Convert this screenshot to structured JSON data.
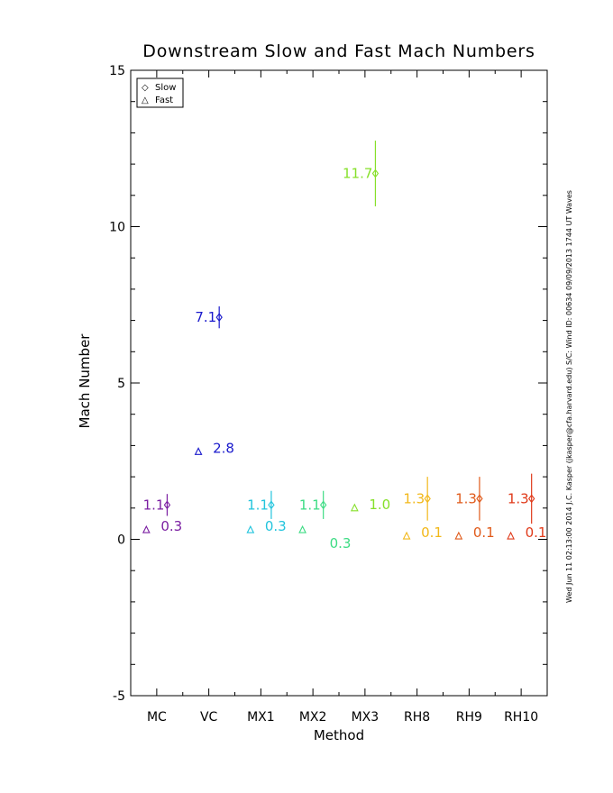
{
  "chart_data": {
    "type": "scatter",
    "title": "Downstream Slow and Fast Mach Numbers",
    "xlabel": "Method",
    "ylabel": "Mach Number",
    "categories": [
      "MC",
      "VC",
      "MX1",
      "MX2",
      "MX3",
      "RH8",
      "RH9",
      "RH10"
    ],
    "xlim": [
      0.5,
      8.5
    ],
    "ylim": [
      -5,
      15
    ],
    "yticks": [
      "-5",
      "0",
      "5",
      "10",
      "15"
    ],
    "legend": {
      "position": "top-left",
      "entries": [
        {
          "symbol": "◇",
          "label": "Slow"
        },
        {
          "symbol": "△",
          "label": "Fast"
        }
      ]
    },
    "series": [
      {
        "name": "Slow",
        "marker": "diamond",
        "points": [
          {
            "category": "MC",
            "y": 1.1,
            "err": 0.35,
            "label": "1.1",
            "color": "#7b1fa2"
          },
          {
            "category": "VC",
            "y": 7.1,
            "err": 0.35,
            "label": "7.1",
            "color": "#1a1acc"
          },
          {
            "category": "MX1",
            "y": 1.1,
            "err": 0.45,
            "label": "1.1",
            "color": "#22c4dd"
          },
          {
            "category": "MX2",
            "y": 1.1,
            "err": 0.45,
            "label": "1.1",
            "color": "#3ddc84"
          },
          {
            "category": "MX3",
            "y": 11.7,
            "err": 1.05,
            "label": "11.7",
            "color": "#86e02a"
          },
          {
            "category": "RH8",
            "y": 1.3,
            "err": 0.7,
            "label": "1.3",
            "color": "#f2b81a"
          },
          {
            "category": "RH9",
            "y": 1.3,
            "err": 0.7,
            "label": "1.3",
            "color": "#e05a1a"
          },
          {
            "category": "RH10",
            "y": 1.3,
            "err": 0.8,
            "label": "1.3",
            "color": "#e03a1a"
          }
        ]
      },
      {
        "name": "Fast",
        "marker": "triangle",
        "points": [
          {
            "category": "MC",
            "y": 0.3,
            "label": "0.3",
            "color": "#7b1fa2"
          },
          {
            "category": "VC",
            "y": 2.8,
            "label": "2.8",
            "color": "#1a1acc"
          },
          {
            "category": "MX1",
            "y": 0.3,
            "label": "0.3",
            "color": "#22c4dd"
          },
          {
            "category": "MX2",
            "y": 0.3,
            "label": "0.3",
            "color": "#3ddc84"
          },
          {
            "category": "MX3",
            "y": 1.0,
            "label": "1.0",
            "color": "#86e02a"
          },
          {
            "category": "RH8",
            "y": 0.1,
            "label": "0.1",
            "color": "#f2b81a"
          },
          {
            "category": "RH9",
            "y": 0.1,
            "label": "0.1",
            "color": "#e05a1a"
          },
          {
            "category": "RH10",
            "y": 0.1,
            "label": "0.1",
            "color": "#e03a1a"
          }
        ]
      }
    ],
    "side_note": "Wed Jun 11 02:13:00 2014   J.C. Kasper (jkasper@cfa.harvard.edu)   S/C: Wind ID: 00634  09/09/2013   1744 UT Waves"
  }
}
